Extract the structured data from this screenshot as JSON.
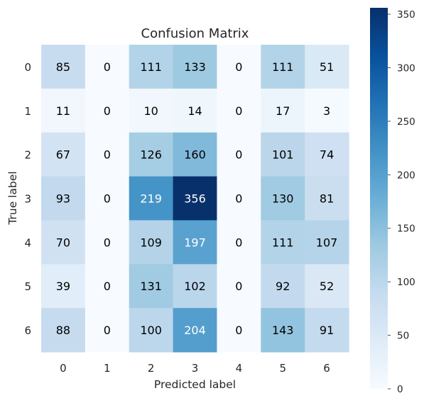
{
  "chart_data": {
    "type": "heatmap",
    "title": "Confusion Matrix",
    "xlabel": "Predicted label",
    "ylabel": "True label",
    "x_categories": [
      "0",
      "1",
      "2",
      "3",
      "4",
      "5",
      "6"
    ],
    "y_categories": [
      "0",
      "1",
      "2",
      "3",
      "4",
      "5",
      "6"
    ],
    "values": [
      [
        85,
        0,
        111,
        133,
        0,
        111,
        51
      ],
      [
        11,
        0,
        10,
        14,
        0,
        17,
        3
      ],
      [
        67,
        0,
        126,
        160,
        0,
        101,
        74
      ],
      [
        93,
        0,
        219,
        356,
        0,
        130,
        81
      ],
      [
        70,
        0,
        109,
        197,
        0,
        111,
        107
      ],
      [
        39,
        0,
        131,
        102,
        0,
        92,
        52
      ],
      [
        88,
        0,
        100,
        204,
        0,
        143,
        91
      ]
    ],
    "colormap": "Blues",
    "color_range": [
      0,
      356
    ],
    "colorbar_ticks": [
      0,
      50,
      100,
      150,
      200,
      250,
      300,
      350
    ],
    "colorbar_tick_labels": [
      "0",
      "50",
      "100",
      "150",
      "200",
      "250",
      "300",
      "350"
    ],
    "grid": false
  }
}
